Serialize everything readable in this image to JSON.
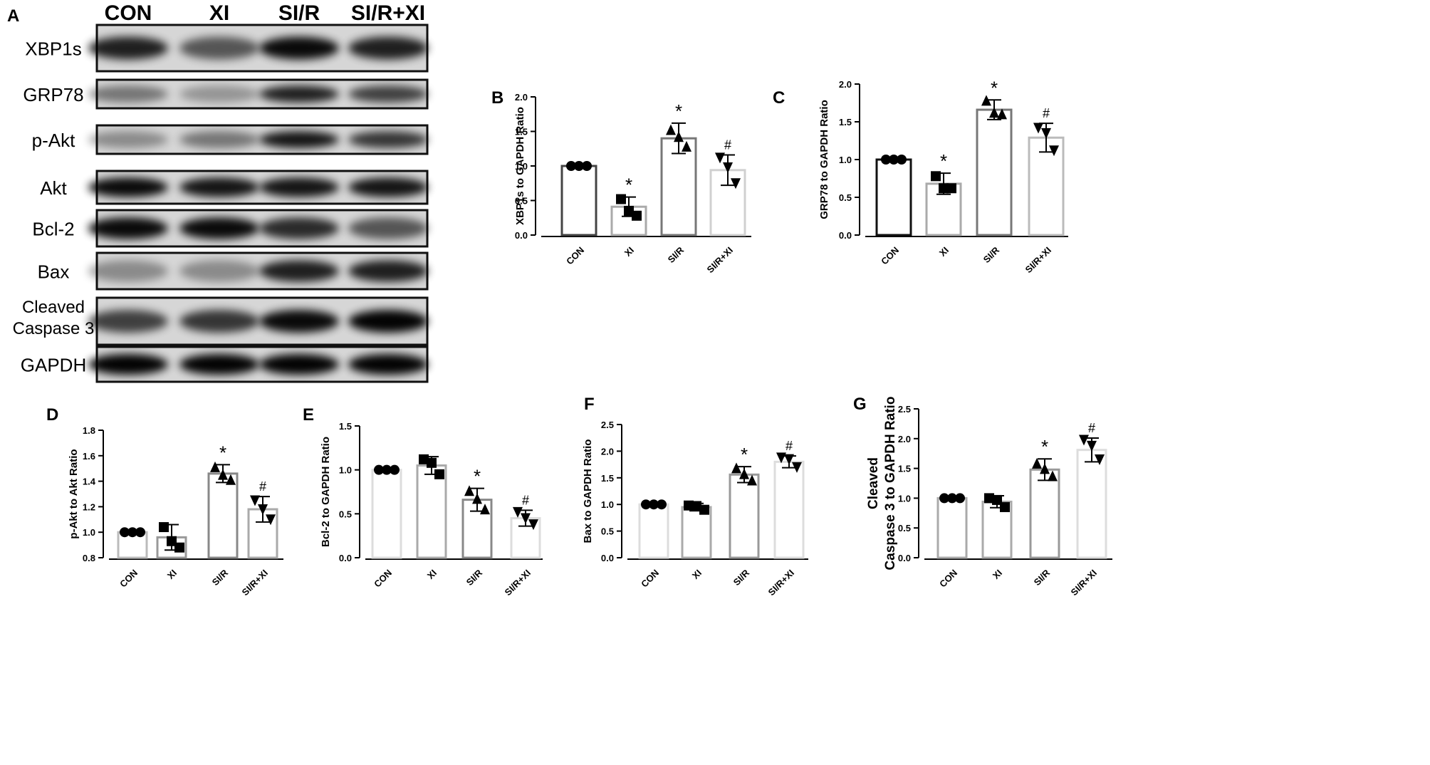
{
  "blot": {
    "panel": "A",
    "lanes": [
      "CON",
      "XI",
      "SI/R",
      "SI/R+XI"
    ],
    "proteins": [
      "XBP1s",
      "GRP78",
      "p-Akt",
      "Akt",
      "Bcl-2",
      "Bax",
      [
        "Cleaved",
        "Caspase 3"
      ],
      "GAPDH"
    ]
  },
  "chart_data": [
    {
      "type": "bar",
      "panel": "B",
      "ylabel": "XBP1s to GAPDH Ratio",
      "categories": [
        "CON",
        "XI",
        "SI/R",
        "SI/R+XI"
      ],
      "colors": [
        "#444444",
        "#aaaaaa",
        "#777777",
        "#d0d0d0"
      ],
      "markers": [
        "circle",
        "square",
        "triangle-up",
        "triangle-down"
      ],
      "values": [
        1.0,
        0.41,
        1.4,
        0.94
      ],
      "errors": [
        0.01,
        0.14,
        0.22,
        0.22
      ],
      "points": [
        [
          1,
          1,
          1
        ],
        [
          0.52,
          0.35,
          0.28
        ],
        [
          1.52,
          1.42,
          1.28
        ],
        [
          1.12,
          0.98,
          0.75
        ]
      ],
      "annotations": [
        null,
        "*",
        "*",
        "#"
      ],
      "ylim": [
        0,
        2
      ],
      "yticks": [
        {
          "value": 0,
          "label": "0.0"
        },
        0.5,
        {
          "value": 1,
          "label": "1.0"
        },
        1.5,
        {
          "value": 2,
          "label": "2.0"
        }
      ]
    },
    {
      "type": "bar",
      "panel": "C",
      "ylabel": "GRP78 to GAPDH Ratio",
      "categories": [
        "CON",
        "XI",
        "SI/R",
        "SI/R+XI"
      ],
      "colors": [
        "#111111",
        "#aaaaaa",
        "#777777",
        "#bbbbbb"
      ],
      "markers": [
        "circle",
        "square",
        "triangle-up",
        "triangle-down"
      ],
      "values": [
        1.0,
        0.68,
        1.66,
        1.29
      ],
      "errors": [
        0.01,
        0.14,
        0.13,
        0.19
      ],
      "points": [
        [
          1,
          1,
          1
        ],
        [
          0.78,
          0.62,
          0.62
        ],
        [
          1.78,
          1.62,
          1.6
        ],
        [
          1.42,
          1.35,
          1.12
        ]
      ],
      "annotations": [
        null,
        "*",
        "*",
        "#"
      ],
      "ylim": [
        0,
        2
      ],
      "yticks": [
        {
          "value": 0,
          "label": "0.0"
        },
        0.5,
        {
          "value": 1,
          "label": "1.0"
        },
        1.5,
        {
          "value": 2,
          "label": "2.0"
        }
      ]
    },
    {
      "type": "bar",
      "panel": "D",
      "ylabel": "p-Akt to Akt Ratio",
      "categories": [
        "CON",
        "XI",
        "SI/R",
        "SI/R+XI"
      ],
      "colors": [
        "#bbbbbb",
        "#999999",
        "#888888",
        "#aaaaaa"
      ],
      "markers": [
        "circle",
        "square",
        "triangle-up",
        "triangle-down"
      ],
      "values": [
        1.0,
        0.96,
        1.46,
        1.18
      ],
      "errors": [
        0.005,
        0.1,
        0.07,
        0.1
      ],
      "points": [
        [
          1,
          1,
          1
        ],
        [
          1.04,
          0.93,
          0.88
        ],
        [
          1.51,
          1.45,
          1.41
        ],
        [
          1.25,
          1.18,
          1.1
        ]
      ],
      "annotations": [
        null,
        null,
        "*",
        "#"
      ],
      "ylim": [
        0.8,
        1.8
      ],
      "yticks": [
        0.8,
        {
          "value": 1,
          "label": "1.0"
        },
        1.2,
        1.4,
        1.6,
        1.8
      ]
    },
    {
      "type": "bar",
      "panel": "E",
      "ylabel": "Bcl-2 to GAPDH Ratio",
      "categories": [
        "CON",
        "XI",
        "SI/R",
        "SI/R+XI"
      ],
      "colors": [
        "#dddddd",
        "#aaaaaa",
        "#888888",
        "#dddddd"
      ],
      "markers": [
        "circle",
        "square",
        "triangle-up",
        "triangle-down"
      ],
      "values": [
        1.0,
        1.05,
        0.66,
        0.45
      ],
      "errors": [
        0.005,
        0.1,
        0.13,
        0.09
      ],
      "points": [
        [
          1,
          1,
          1
        ],
        [
          1.12,
          1.08,
          0.95
        ],
        [
          0.76,
          0.67,
          0.55
        ],
        [
          0.52,
          0.45,
          0.38
        ]
      ],
      "annotations": [
        null,
        null,
        "*",
        "#"
      ],
      "ylim": [
        0,
        1.5
      ],
      "yticks": [
        {
          "value": 0,
          "label": "0.0"
        },
        0.5,
        {
          "value": 1,
          "label": "1.0"
        },
        1.5
      ]
    },
    {
      "type": "bar",
      "panel": "F",
      "ylabel": "Bax to GAPDH Ratio",
      "categories": [
        "CON",
        "XI",
        "SI/R",
        "SI/R+XI"
      ],
      "colors": [
        "#dddddd",
        "#aaaaaa",
        "#999999",
        "#dddddd"
      ],
      "markers": [
        "circle",
        "square",
        "triangle-up",
        "triangle-down"
      ],
      "values": [
        1.0,
        0.95,
        1.56,
        1.8
      ],
      "errors": [
        0.01,
        0.07,
        0.15,
        0.11
      ],
      "points": [
        [
          1,
          1,
          1
        ],
        [
          0.98,
          0.97,
          0.9
        ],
        [
          1.68,
          1.57,
          1.45
        ],
        [
          1.88,
          1.85,
          1.7
        ]
      ],
      "annotations": [
        null,
        null,
        "*",
        "#"
      ],
      "ylim": [
        0,
        2.5
      ],
      "yticks": [
        {
          "value": 0,
          "label": "0.0"
        },
        0.5,
        {
          "value": 1,
          "label": "1.0"
        },
        1.5,
        {
          "value": 2,
          "label": "2.0"
        },
        2.5
      ]
    },
    {
      "type": "bar",
      "panel": "G",
      "ylabel": [
        "Cleaved",
        "Caspase 3 to GAPDH Ratio"
      ],
      "categories": [
        "CON",
        "XI",
        "SI/R",
        "SI/R+XI"
      ],
      "colors": [
        "#aaaaaa",
        "#aaaaaa",
        "#999999",
        "#dddddd"
      ],
      "markers": [
        "circle",
        "square",
        "triangle-up",
        "triangle-down"
      ],
      "values": [
        1.0,
        0.94,
        1.48,
        1.81
      ],
      "errors": [
        0.01,
        0.1,
        0.18,
        0.2
      ],
      "points": [
        [
          1,
          1,
          1
        ],
        [
          1.0,
          0.97,
          0.85
        ],
        [
          1.58,
          1.49,
          1.37
        ],
        [
          1.98,
          1.88,
          1.65
        ]
      ],
      "annotations": [
        null,
        null,
        "*",
        "#"
      ],
      "ylim": [
        0,
        2.5
      ],
      "yticks": [
        {
          "value": 0,
          "label": "0.0"
        },
        0.5,
        {
          "value": 1,
          "label": "1.0"
        },
        1.5,
        {
          "value": 2,
          "label": "2.0"
        },
        2.5
      ]
    }
  ]
}
